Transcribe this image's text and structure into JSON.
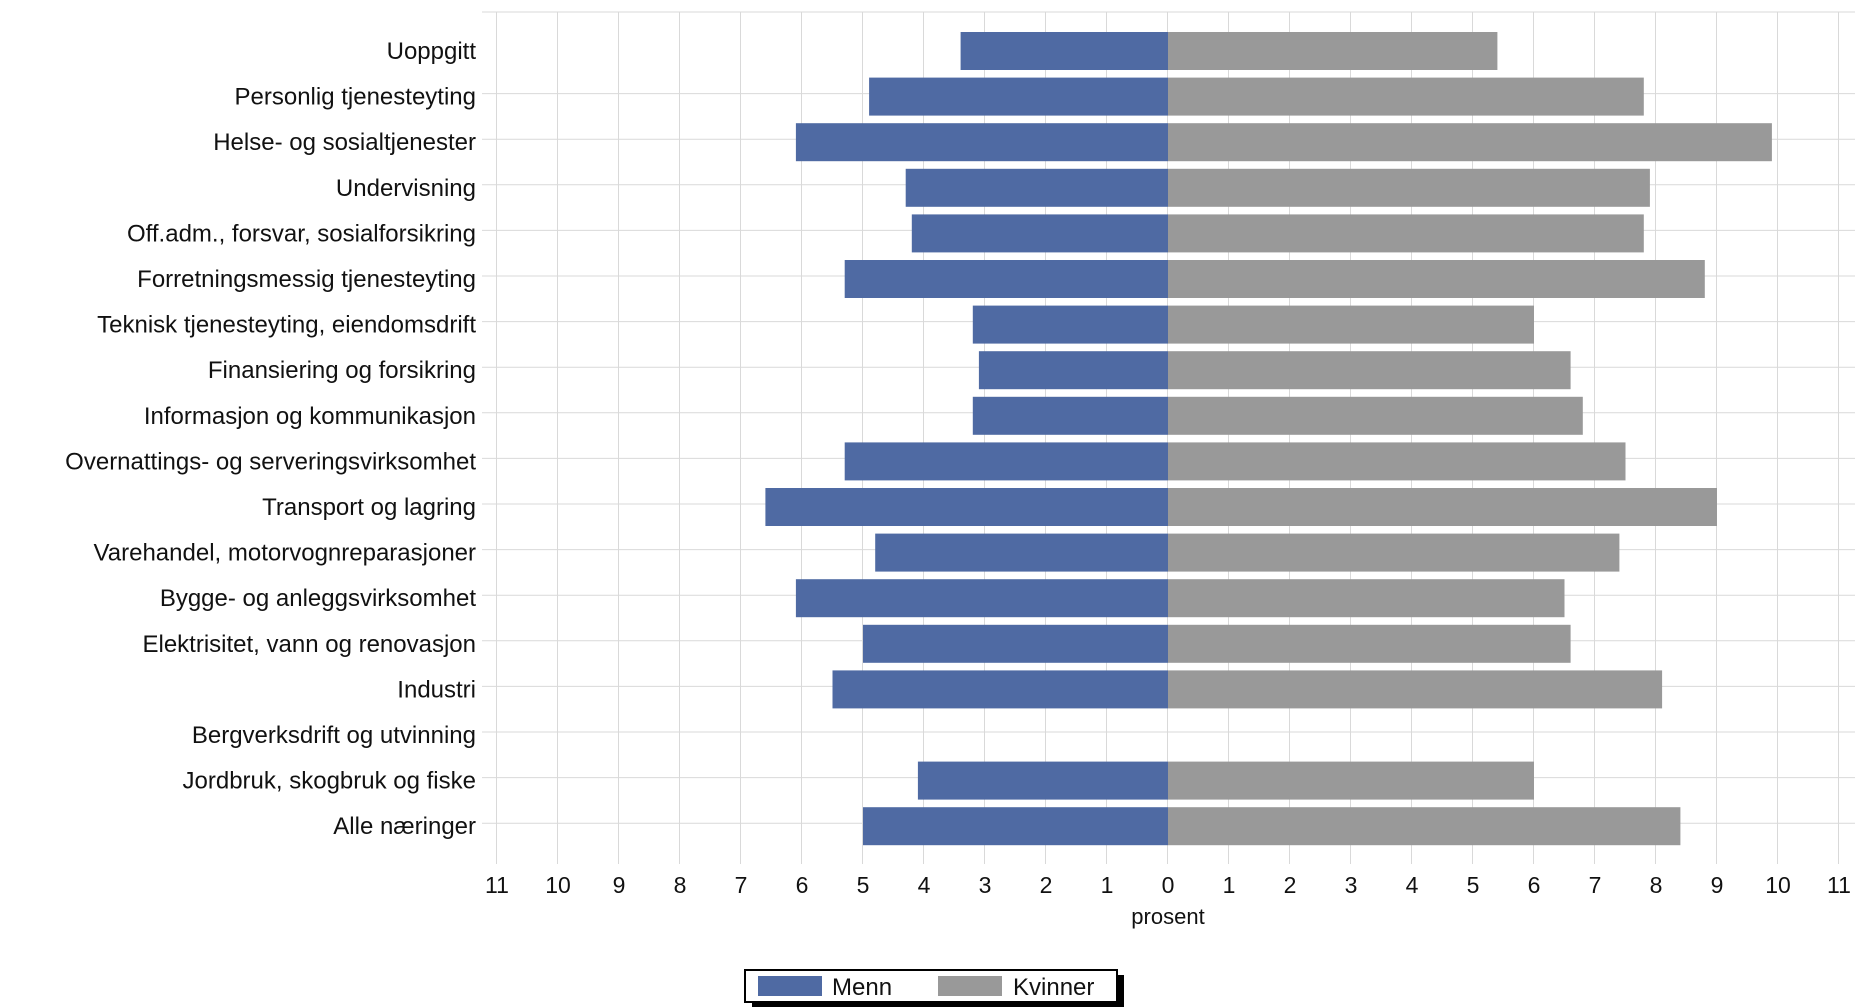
{
  "chart_data": {
    "type": "bar",
    "orientation": "horizontal",
    "layout": "population-pyramid",
    "categories": [
      "Uoppgitt",
      "Personlig tjenesteyting",
      "Helse- og sosialtjenester",
      "Undervisning",
      "Off.adm., forsvar, sosialforsikring",
      "Forretningsmessig tjenesteyting",
      "Teknisk tjenesteyting, eiendomsdrift",
      "Finansiering og forsikring",
      "Informasjon og kommunikasjon",
      "Overnattings- og serveringsvirksomhet",
      "Transport og lagring",
      "Varehandel, motorvognreparasjoner",
      "Bygge- og anleggsvirksomhet",
      "Elektrisitet, vann og renovasjon",
      "Industri",
      "Bergverksdrift og utvinning",
      "Jordbruk, skogbruk og fiske",
      "Alle næringer"
    ],
    "series": [
      {
        "name": "Menn",
        "side": "left",
        "color": "#4f6aa3",
        "values": [
          3.4,
          4.9,
          6.1,
          4.3,
          4.2,
          5.3,
          3.2,
          3.1,
          3.2,
          5.3,
          6.6,
          4.8,
          6.1,
          5.0,
          5.5,
          0,
          4.1,
          5.0
        ]
      },
      {
        "name": "Kvinner",
        "side": "right",
        "color": "#999999",
        "values": [
          5.4,
          7.8,
          9.9,
          7.9,
          7.8,
          8.8,
          6.0,
          6.6,
          6.8,
          7.5,
          9.0,
          7.4,
          6.5,
          6.6,
          8.1,
          0,
          6.0,
          8.4
        ]
      }
    ],
    "xlabel": "prosent",
    "xlim": [
      -11,
      11
    ],
    "xticks": [
      "11",
      "10",
      "9",
      "8",
      "7",
      "6",
      "5",
      "4",
      "3",
      "2",
      "1",
      "0",
      "1",
      "2",
      "3",
      "4",
      "5",
      "6",
      "7",
      "8",
      "9",
      "10",
      "11"
    ],
    "grid": true,
    "legend": "bottom-center"
  }
}
